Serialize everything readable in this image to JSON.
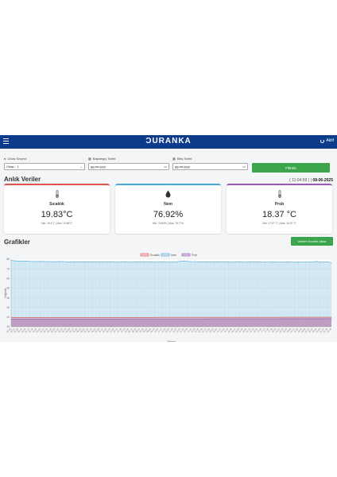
{
  "navbar": {
    "brand": "ƆURANKA",
    "status": "Aktif"
  },
  "filters": {
    "device": {
      "label": "Cihaz Seçimi:",
      "value": "Odap - 1"
    },
    "start": {
      "label": "Başlangıç Tarihi:",
      "value": "gg.aa.yyyy"
    },
    "end": {
      "label": "Bitiş Tarihi:",
      "value": "gg.aa.yyyy"
    },
    "button": "Filtrele"
  },
  "live": {
    "title": "Anlık Veriler",
    "time": "( 11:04:59 )",
    "date": "08-06-2025"
  },
  "cards": [
    {
      "title": "Sıcaklık",
      "value": "19.83°C",
      "minmax": "Min: 19.4°C | Max: 19.86°C",
      "color": "#d9534f",
      "icon": "thermometer-icon"
    },
    {
      "title": "Nem",
      "value": "76.92%",
      "minmax": "Min: 76.83% | Max: 78.77%",
      "color": "#4aa8d8",
      "icon": "water-drop-icon"
    },
    {
      "title": "Prob",
      "value": "18.37 °C",
      "minmax": "Min: 17.87 °C | Max: 18.37 °C",
      "color": "#9b59b6",
      "icon": "thermometer-icon"
    }
  ],
  "charts": {
    "title": "Grafikler",
    "export": "Verileri Excel'e Aktar"
  },
  "chart_data": {
    "type": "area",
    "title": "",
    "xlabel": "Zaman",
    "ylabel": "Değerler",
    "ylim": [
      10,
      80
    ],
    "yticks": [
      10,
      20,
      30,
      40,
      50,
      60,
      70,
      80
    ],
    "legend_position": "top-center",
    "grid": true,
    "x": [
      "00:00",
      "00:15",
      "00:30",
      "00:45",
      "01:00",
      "01:15",
      "01:30",
      "01:45",
      "02:00",
      "02:15",
      "02:30",
      "02:45",
      "03:00",
      "03:15",
      "03:30",
      "03:45",
      "04:00",
      "04:15",
      "04:30",
      "04:45",
      "05:00",
      "05:15",
      "05:30",
      "05:45",
      "06:00",
      "06:15",
      "06:30",
      "06:45",
      "07:00",
      "07:15",
      "07:30",
      "07:45",
      "08:00",
      "08:15",
      "08:30",
      "08:45",
      "09:00",
      "09:15",
      "09:30",
      "09:45",
      "10:00",
      "10:15",
      "10:30",
      "10:45",
      "11:00",
      "11:15",
      "11:30",
      "11:45",
      "12:00",
      "12:15",
      "12:30",
      "12:45",
      "13:00",
      "13:15",
      "13:30",
      "13:45",
      "14:00",
      "14:15",
      "14:30",
      "14:45",
      "15:00",
      "15:15",
      "15:30",
      "15:45",
      "16:00",
      "16:15",
      "16:30",
      "16:45",
      "17:00",
      "17:15",
      "17:30",
      "17:45",
      "18:00",
      "18:15",
      "18:30",
      "18:45",
      "19:00",
      "19:15",
      "19:30",
      "19:45",
      "20:00",
      "20:15",
      "20:30",
      "20:45",
      "21:00",
      "21:15",
      "21:30",
      "21:45"
    ],
    "series": [
      {
        "name": "Sıcaklık",
        "color": "#d9534f",
        "values": [
          19.6,
          19.6,
          19.6,
          19.6,
          19.6,
          19.6,
          19.6,
          19.6,
          19.6,
          19.6,
          19.6,
          19.6,
          19.6,
          19.6,
          19.6,
          19.6,
          19.6,
          19.6,
          19.6,
          19.6,
          19.6,
          19.6,
          19.6,
          19.6,
          19.6,
          19.6,
          19.6,
          19.6,
          19.6,
          19.6,
          19.6,
          19.6,
          19.6,
          19.6,
          19.6,
          19.6,
          19.6,
          19.6,
          19.6,
          19.6,
          19.7,
          19.7,
          19.7,
          19.7,
          19.7,
          19.7,
          19.7,
          19.7,
          19.7,
          19.7,
          19.7,
          19.7,
          19.7,
          19.7,
          19.7,
          19.7,
          19.7,
          19.7,
          19.7,
          19.7,
          19.7,
          19.7,
          19.7,
          19.7,
          19.7,
          19.7,
          19.7,
          19.7,
          19.7,
          19.7,
          19.7,
          19.7,
          19.7,
          19.7,
          19.8,
          19.8,
          19.8,
          19.8,
          19.8,
          19.8,
          19.8,
          19.8,
          19.8,
          19.8,
          19.8,
          19.8,
          19.8,
          19.8
        ]
      },
      {
        "name": "Nem",
        "color": "#4aa8d8",
        "values": [
          78.6,
          78.3,
          78.1,
          77.9,
          78.0,
          77.8,
          77.7,
          77.6,
          77.7,
          77.6,
          77.5,
          77.5,
          77.4,
          77.6,
          77.5,
          77.4,
          77.3,
          77.4,
          77.3,
          77.2,
          77.3,
          77.2,
          77.3,
          77.2,
          77.1,
          77.2,
          77.1,
          77.2,
          77.1,
          77.0,
          77.1,
          77.2,
          77.1,
          77.0,
          77.1,
          77.0,
          77.1,
          77.0,
          77.2,
          77.1,
          77.0,
          77.1,
          77.0,
          77.1,
          77.2,
          77.3,
          77.8,
          78.0,
          77.7,
          77.5,
          77.4,
          77.3,
          77.2,
          77.3,
          77.2,
          77.1,
          77.2,
          77.1,
          77.0,
          77.1,
          77.0,
          77.1,
          77.2,
          77.1,
          77.0,
          77.1,
          77.0,
          77.1,
          77.0,
          76.9,
          77.0,
          77.1,
          77.0,
          76.9,
          77.0,
          77.1,
          77.0,
          76.9,
          77.0,
          76.9,
          77.0,
          76.9,
          77.4,
          77.6,
          77.2,
          77.0,
          77.2,
          76.3
        ]
      },
      {
        "name": "Prob",
        "color": "#9b59b6",
        "values": [
          18.0,
          18.0,
          18.0,
          18.0,
          18.0,
          18.0,
          18.0,
          18.0,
          18.0,
          18.0,
          18.0,
          18.0,
          18.0,
          18.0,
          18.0,
          18.0,
          18.0,
          18.0,
          18.0,
          18.0,
          18.0,
          18.0,
          18.0,
          18.0,
          18.0,
          18.0,
          18.0,
          18.0,
          18.0,
          18.0,
          18.0,
          18.1,
          18.1,
          18.1,
          18.1,
          18.1,
          18.1,
          18.1,
          18.1,
          18.1,
          18.1,
          18.1,
          18.1,
          18.1,
          18.1,
          18.1,
          18.1,
          18.1,
          18.1,
          18.1,
          18.1,
          18.1,
          18.1,
          18.1,
          18.2,
          18.2,
          18.2,
          18.2,
          18.2,
          18.2,
          18.2,
          18.2,
          18.2,
          18.2,
          18.2,
          18.2,
          18.2,
          18.2,
          18.2,
          18.2,
          18.2,
          18.2,
          18.2,
          18.2,
          18.3,
          18.3,
          18.3,
          18.3,
          18.3,
          18.3,
          18.3,
          18.3,
          18.3,
          18.3,
          18.3,
          18.3,
          18.3,
          18.4
        ]
      }
    ]
  }
}
